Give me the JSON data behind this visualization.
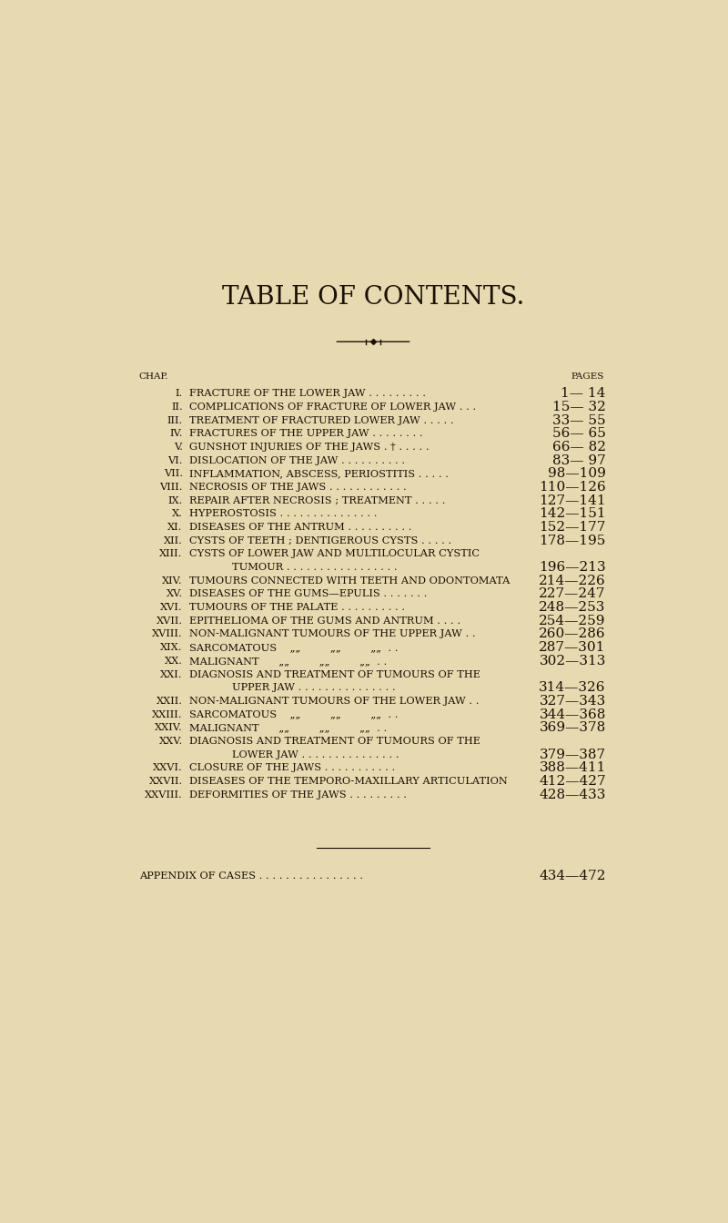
{
  "bg_color": "#e8dab0",
  "text_color": "#1a1008",
  "title": "TABLE OF CONTENTS.",
  "title_fontsize": 20,
  "header_chap": "CHAP.",
  "header_pages": "PAGES",
  "entries": [
    {
      "num": "I.",
      "text": "FRACTURE OF THE LOWER JAW . . . . . . . . .",
      "pages": "1— 14",
      "cont": false
    },
    {
      "num": "II.",
      "text": "COMPLICATIONS OF FRACTURE OF LOWER JAW . . .",
      "pages": "15— 32",
      "cont": false
    },
    {
      "num": "III.",
      "text": "TREATMENT OF FRACTURED LOWER JAW . . . . .",
      "pages": "33— 55",
      "cont": false
    },
    {
      "num": "IV.",
      "text": "FRACTURES OF THE UPPER JAW . . . . . . . .",
      "pages": "56— 65",
      "cont": false
    },
    {
      "num": "V.",
      "text": "GUNSHOT INJURIES OF THE JAWS . † . . . . .",
      "pages": "66— 82",
      "cont": false
    },
    {
      "num": "VI.",
      "text": "DISLOCATION OF THE JAW . . . . . . . . . .",
      "pages": "83— 97",
      "cont": false
    },
    {
      "num": "VII.",
      "text": "INFLAMMATION, ABSCESS, PERIOSTITIS . . . . .",
      "pages": "98—109",
      "cont": false
    },
    {
      "num": "VIII.",
      "text": "NECROSIS OF THE JAWS . . . . . . . . . . . .",
      "pages": "110—126",
      "cont": false
    },
    {
      "num": "IX.",
      "text": "REPAIR AFTER NECROSIS ; TREATMENT . . . . .",
      "pages": "127—141",
      "cont": false
    },
    {
      "num": "X.",
      "text": "HYPEROSTOSIS . . . . . . . . . . . . . . .",
      "pages": "142—151",
      "cont": false
    },
    {
      "num": "XI.",
      "text": "DISEASES OF THE ANTRUM . . . . . . . . . .",
      "pages": "152—177",
      "cont": false
    },
    {
      "num": "XII.",
      "text": "CYSTS OF TEETH ; DENTIGEROUS CYSTS . . . . .",
      "pages": "178—195",
      "cont": false
    },
    {
      "num": "XIII.",
      "text": "CYSTS OF LOWER JAW AND MULTILOCULAR CYSTIC",
      "pages": "",
      "cont": false
    },
    {
      "num": "",
      "text": "        TUMOUR . . . . . . . . . . . . . . . . .",
      "pages": "196—213",
      "cont": true
    },
    {
      "num": "XIV.",
      "text": "TUMOURS CONNECTED WITH TEETH AND ODONTOMATA",
      "pages": "214—226",
      "cont": false
    },
    {
      "num": "XV.",
      "text": "DISEASES OF THE GUMS—EPULIS . . . . . . .",
      "pages": "227—247",
      "cont": false
    },
    {
      "num": "XVI.",
      "text": "TUMOURS OF THE PALATE . . . . . . . . . .",
      "pages": "248—253",
      "cont": false
    },
    {
      "num": "XVII.",
      "text": "EPITHELIOMA OF THE GUMS AND ANTRUM . . . .",
      "pages": "254—259",
      "cont": false
    },
    {
      "num": "XVIII.",
      "text": "NON-MALIGNANT TUMOURS OF THE UPPER JAW . .",
      "pages": "260—286",
      "cont": false
    },
    {
      "num": "XIX.",
      "text": "SARCOMATOUS    „„         „„         „„  . .",
      "pages": "287—301",
      "cont": false
    },
    {
      "num": "XX.",
      "text": "MALIGNANT      „„         „„         „„  . .",
      "pages": "302—313",
      "cont": false
    },
    {
      "num": "XXI.",
      "text": "DIAGNOSIS AND TREATMENT OF TUMOURS OF THE",
      "pages": "",
      "cont": false
    },
    {
      "num": "",
      "text": "        UPPER JAW . . . . . . . . . . . . . . .",
      "pages": "314—326",
      "cont": true
    },
    {
      "num": "XXII.",
      "text": "NON-MALIGNANT TUMOURS OF THE LOWER JAW . .",
      "pages": "327—343",
      "cont": false
    },
    {
      "num": "XXIII.",
      "text": "SARCOMATOUS    „„         „„         „„  . .",
      "pages": "344—368",
      "cont": false
    },
    {
      "num": "XXIV.",
      "text": "MALIGNANT      „„         „„         „„  . .",
      "pages": "369—378",
      "cont": false
    },
    {
      "num": "XXV.",
      "text": "DIAGNOSIS AND TREATMENT OF TUMOURS OF THE",
      "pages": "",
      "cont": false
    },
    {
      "num": "",
      "text": "        LOWER JAW . . . . . . . . . . . . . . .",
      "pages": "379—387",
      "cont": true
    },
    {
      "num": "XXVI.",
      "text": "CLOSURE OF THE JAWS . . . . . . . . . . .",
      "pages": "388—411",
      "cont": false
    },
    {
      "num": "XXVII.",
      "text": "DISEASES OF THE TEMPORO-MAXILLARY ARTICULATION",
      "pages": "412—427",
      "cont": false
    },
    {
      "num": "XXVIII.",
      "text": "DEFORMITIES OF THE JAWS . . . . . . . . .",
      "pages": "428—433",
      "cont": false
    }
  ],
  "appendix_text": "APPENDIX OF CASES . . . . . . . . . . . . . . . .",
  "appendix_pages": "434—472",
  "body_fontsize": 8.2,
  "pages_fontsize": 11.0,
  "header_fontsize": 7.5
}
